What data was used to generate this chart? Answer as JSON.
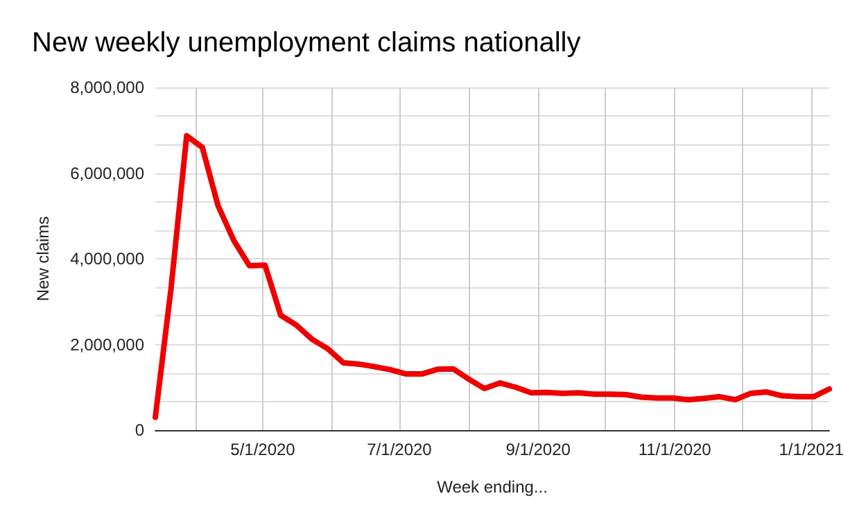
{
  "chart_data": {
    "type": "line",
    "title": "New weekly unemployment claims nationally",
    "xlabel": "Week ending...",
    "ylabel": "New claims",
    "x": [
      "2020-03-14",
      "2020-03-21",
      "2020-03-28",
      "2020-04-04",
      "2020-04-11",
      "2020-04-18",
      "2020-04-25",
      "2020-05-02",
      "2020-05-09",
      "2020-05-16",
      "2020-05-23",
      "2020-05-30",
      "2020-06-06",
      "2020-06-13",
      "2020-06-20",
      "2020-06-27",
      "2020-07-04",
      "2020-07-11",
      "2020-07-18",
      "2020-07-25",
      "2020-08-01",
      "2020-08-08",
      "2020-08-15",
      "2020-08-22",
      "2020-08-29",
      "2020-09-05",
      "2020-09-12",
      "2020-09-19",
      "2020-09-26",
      "2020-10-03",
      "2020-10-10",
      "2020-10-17",
      "2020-10-24",
      "2020-10-31",
      "2020-11-07",
      "2020-11-14",
      "2020-11-21",
      "2020-11-28",
      "2020-12-05",
      "2020-12-12",
      "2020-12-19",
      "2020-12-26",
      "2021-01-02",
      "2021-01-09"
    ],
    "series": [
      {
        "color": "#ee0000",
        "values": [
          300000,
          3300000,
          6870000,
          6600000,
          5240000,
          4430000,
          3840000,
          3850000,
          2680000,
          2450000,
          2120000,
          1900000,
          1570000,
          1540000,
          1480000,
          1410000,
          1310000,
          1310000,
          1420000,
          1430000,
          1190000,
          970000,
          1100000,
          1000000,
          870000,
          880000,
          860000,
          870000,
          840000,
          840000,
          830000,
          770000,
          750000,
          750000,
          710000,
          740000,
          780000,
          710000,
          860000,
          890000,
          800000,
          780000,
          780000,
          960000
        ]
      }
    ],
    "xlim": [
      "2020-03-14",
      "2021-01-09"
    ],
    "xticks": [
      {
        "value": "2020-04-01",
        "label": null
      },
      {
        "value": "2020-05-01",
        "label": "5/1/2020"
      },
      {
        "value": "2020-06-01",
        "label": null
      },
      {
        "value": "2020-07-01",
        "label": "7/1/2020"
      },
      {
        "value": "2020-08-01",
        "label": null
      },
      {
        "value": "2020-09-01",
        "label": "9/1/2020"
      },
      {
        "value": "2020-10-01",
        "label": null
      },
      {
        "value": "2020-11-01",
        "label": "11/1/2020"
      },
      {
        "value": "2020-12-01",
        "label": null
      },
      {
        "value": "2021-01-01",
        "label": "1/1/2021"
      }
    ],
    "ylim": [
      0,
      8000000
    ],
    "yticks": [
      {
        "value": 0,
        "label": "0"
      },
      {
        "value": 666667,
        "label": null
      },
      {
        "value": 1333333,
        "label": null
      },
      {
        "value": 2000000,
        "label": "2,000,000"
      },
      {
        "value": 2666667,
        "label": null
      },
      {
        "value": 3333333,
        "label": null
      },
      {
        "value": 4000000,
        "label": "4,000,000"
      },
      {
        "value": 4666667,
        "label": null
      },
      {
        "value": 5333333,
        "label": null
      },
      {
        "value": 6000000,
        "label": "6,000,000"
      },
      {
        "value": 6666667,
        "label": null
      },
      {
        "value": 7333333,
        "label": null
      },
      {
        "value": 8000000,
        "label": "8,000,000"
      }
    ],
    "grid": true,
    "marker": "none",
    "line_style": "solid"
  }
}
